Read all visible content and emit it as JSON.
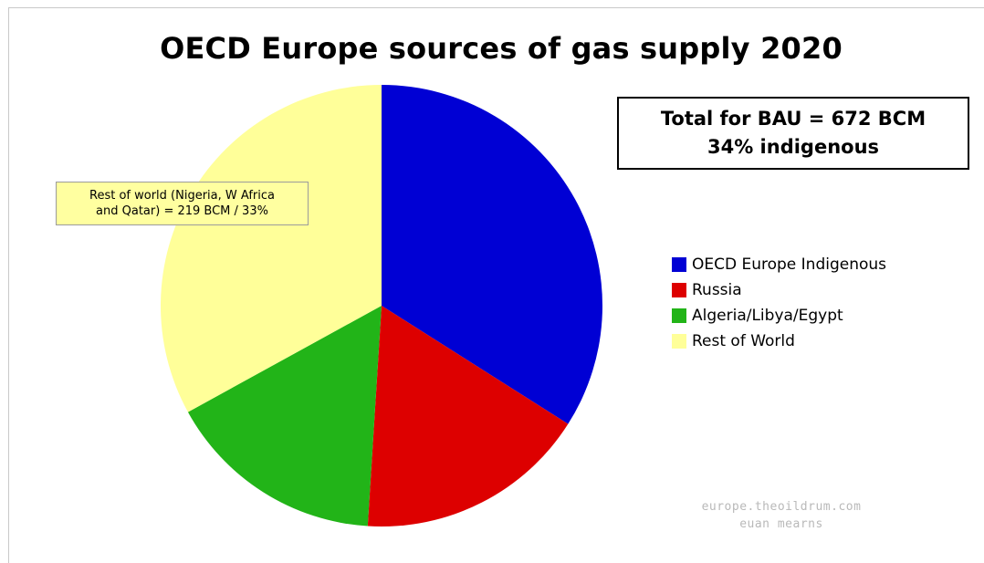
{
  "chart_data": {
    "type": "pie",
    "title": "OECD Europe sources of gas supply 2020",
    "slices": [
      {
        "label": "OECD Europe Indigenous",
        "value": 34,
        "color": "#0000d4"
      },
      {
        "label": "Russia",
        "value": 17,
        "color": "#dd0000"
      },
      {
        "label": "Algeria/Libya/Egypt",
        "value": 16,
        "color": "#22b418"
      },
      {
        "label": "Rest of World",
        "value": 33,
        "color": "#ffff99"
      }
    ],
    "legend": {
      "position": "right"
    },
    "annotations": {
      "total_line1": "Total for BAU = 672 BCM",
      "total_line2": "34% indigenous",
      "callout_line1": "Rest of world (Nigeria, W Africa",
      "callout_line2": "and Qatar) = 219 BCM / 33%"
    },
    "credit_line1": "europe.theoildrum.com",
    "credit_line2": "euan mearns"
  }
}
